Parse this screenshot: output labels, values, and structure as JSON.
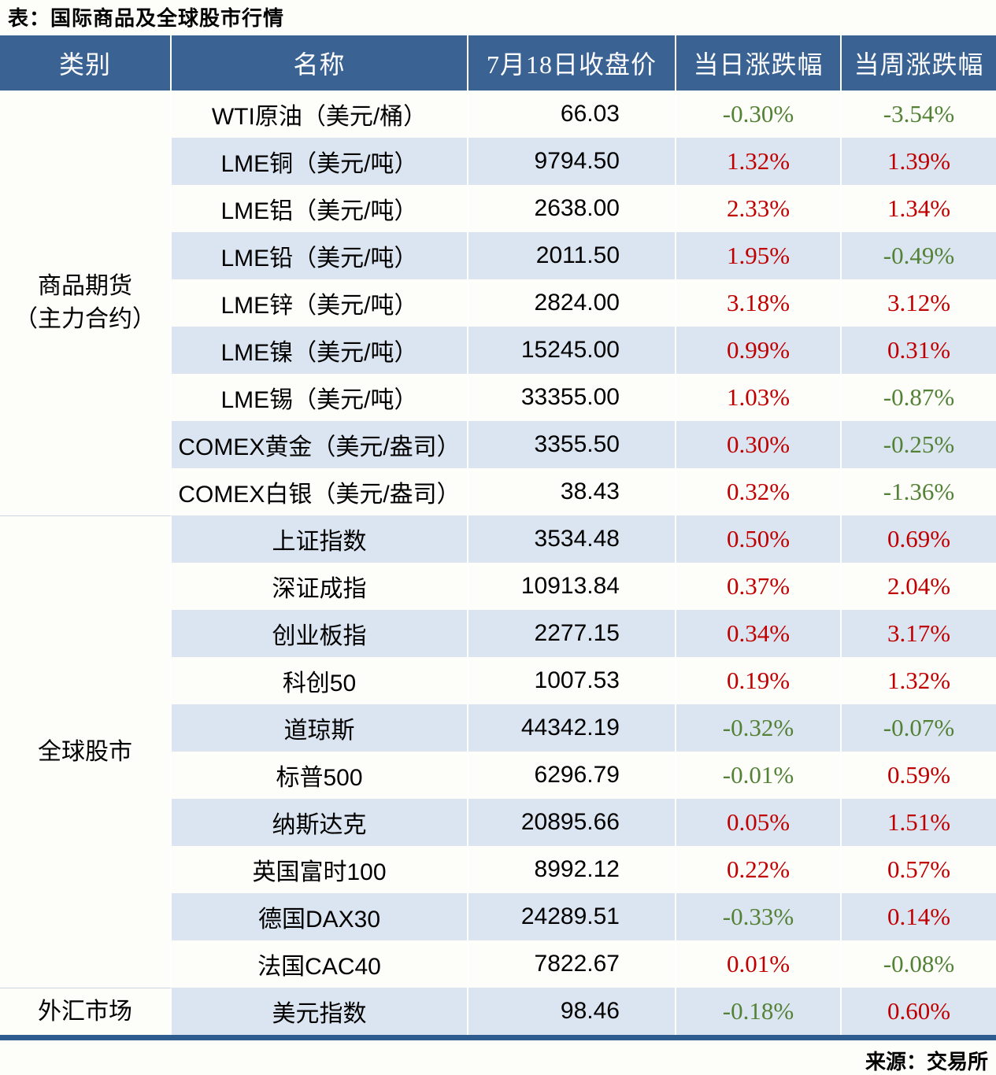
{
  "title": "表：国际商品及全球股市行情",
  "source": "来源：交易所",
  "colors": {
    "page_bg": "#fdfdf9",
    "header_bg": "#3a6292",
    "stripe": "#dbe5f1",
    "up": "#c00000",
    "down": "#538135",
    "bottom_border": "#2f5c8e",
    "section_divider": "#ccd6e3"
  },
  "chart_data": {
    "type": "table",
    "title": "表：国际商品及全球股市行情",
    "source": "来源：交易所",
    "columns": [
      "类别",
      "名称",
      "7月18日收盘价",
      "当日涨跌幅",
      "当周涨跌幅"
    ],
    "categories": [
      {
        "label_lines": [
          "商品期货",
          "（主力合约）"
        ],
        "rows": [
          1,
          9
        ]
      },
      {
        "label_lines": [
          "全球股市"
        ],
        "rows": [
          10,
          19
        ]
      },
      {
        "label_lines": [
          "外汇市场"
        ],
        "rows": [
          20,
          20
        ]
      }
    ],
    "rows": [
      {
        "name": "WTI原油（美元/桶）",
        "close": "66.03",
        "day_chg": "-0.30%",
        "week_chg": "-3.54%"
      },
      {
        "name": "LME铜（美元/吨）",
        "close": "9794.50",
        "day_chg": "1.32%",
        "week_chg": "1.39%"
      },
      {
        "name": "LME铝（美元/吨）",
        "close": "2638.00",
        "day_chg": "2.33%",
        "week_chg": "1.34%"
      },
      {
        "name": "LME铅（美元/吨）",
        "close": "2011.50",
        "day_chg": "1.95%",
        "week_chg": "-0.49%"
      },
      {
        "name": "LME锌（美元/吨）",
        "close": "2824.00",
        "day_chg": "3.18%",
        "week_chg": "3.12%"
      },
      {
        "name": "LME镍（美元/吨）",
        "close": "15245.00",
        "day_chg": "0.99%",
        "week_chg": "0.31%"
      },
      {
        "name": "LME锡（美元/吨）",
        "close": "33355.00",
        "day_chg": "1.03%",
        "week_chg": "-0.87%"
      },
      {
        "name": "COMEX黄金（美元/盎司）",
        "close": "3355.50",
        "day_chg": "0.30%",
        "week_chg": "-0.25%"
      },
      {
        "name": "COMEX白银（美元/盎司）",
        "close": "38.43",
        "day_chg": "0.32%",
        "week_chg": "-1.36%"
      },
      {
        "name": "上证指数",
        "close": "3534.48",
        "day_chg": "0.50%",
        "week_chg": "0.69%"
      },
      {
        "name": "深证成指",
        "close": "10913.84",
        "day_chg": "0.37%",
        "week_chg": "2.04%"
      },
      {
        "name": "创业板指",
        "close": "2277.15",
        "day_chg": "0.34%",
        "week_chg": "3.17%"
      },
      {
        "name": "科创50",
        "close": "1007.53",
        "day_chg": "0.19%",
        "week_chg": "1.32%"
      },
      {
        "name": "道琼斯",
        "close": "44342.19",
        "day_chg": "-0.32%",
        "week_chg": "-0.07%"
      },
      {
        "name": "标普500",
        "close": "6296.79",
        "day_chg": "-0.01%",
        "week_chg": "0.59%"
      },
      {
        "name": "纳斯达克",
        "close": "20895.66",
        "day_chg": "0.05%",
        "week_chg": "1.51%"
      },
      {
        "name": "英国富时100",
        "close": "8992.12",
        "day_chg": "0.22%",
        "week_chg": "0.57%"
      },
      {
        "name": "德国DAX30",
        "close": "24289.51",
        "day_chg": "-0.33%",
        "week_chg": "0.14%"
      },
      {
        "name": "法国CAC40",
        "close": "7822.67",
        "day_chg": "0.01%",
        "week_chg": "-0.08%"
      },
      {
        "name": "美元指数",
        "close": "98.46",
        "day_chg": "-0.18%",
        "week_chg": "0.60%"
      }
    ]
  }
}
